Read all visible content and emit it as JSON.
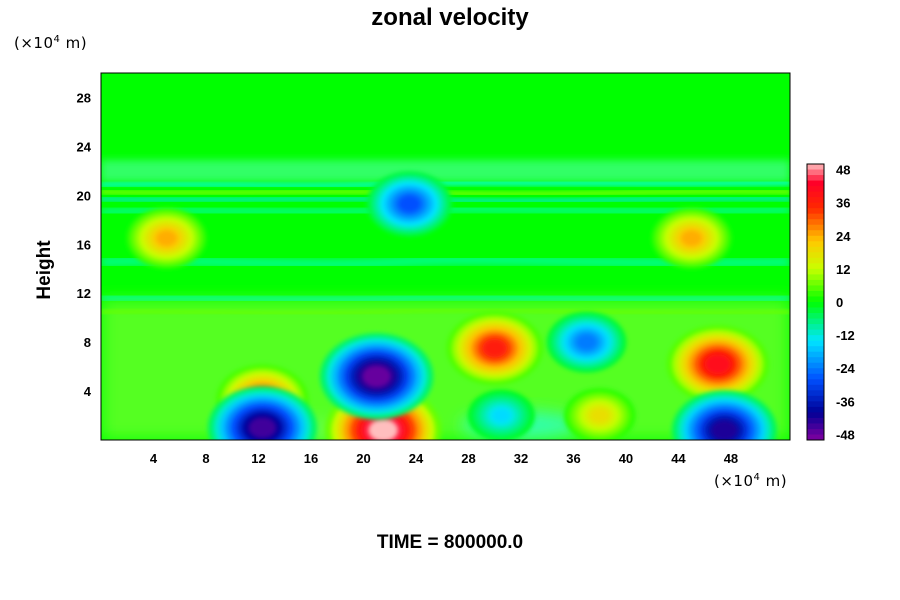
{
  "chart_data": {
    "type": "heatmap",
    "title": "zonal velocity",
    "ylabel": "Height",
    "xlabel": "",
    "x_unit_prefix": "(×10",
    "x_unit_exp": "4",
    "x_unit_suffix": " m)",
    "y_unit_prefix": "(×10",
    "y_unit_exp": "4",
    "y_unit_suffix": " m)",
    "footer": "TIME = 800000.0",
    "xlim": [
      0,
      52.5
    ],
    "ylim": [
      0,
      30
    ],
    "x_ticks": [
      "4",
      "8",
      "12",
      "16",
      "20",
      "24",
      "28",
      "32",
      "36",
      "40",
      "44",
      "48"
    ],
    "y_ticks": [
      "4",
      "8",
      "12",
      "16",
      "20",
      "24",
      "28"
    ],
    "colorbar": {
      "min": -50,
      "max": 50,
      "ticks": [
        "48",
        "36",
        "24",
        "12",
        "0",
        "-12",
        "-24",
        "-36",
        "-48"
      ]
    },
    "features": [
      {
        "x": 21.5,
        "y": 0.8,
        "value": 50
      },
      {
        "x": 21.0,
        "y": 5.2,
        "value": -48
      },
      {
        "x": 30.0,
        "y": 7.5,
        "value": 36
      },
      {
        "x": 47.0,
        "y": 6.2,
        "value": 40
      },
      {
        "x": 12.3,
        "y": 3.3,
        "value": 33
      },
      {
        "x": 12.3,
        "y": 1.0,
        "value": -45
      },
      {
        "x": 47.5,
        "y": 0.8,
        "value": -42
      },
      {
        "x": 37.0,
        "y": 8.0,
        "value": -24
      },
      {
        "x": 30.5,
        "y": 2.0,
        "value": -15
      },
      {
        "x": 23.5,
        "y": 19.3,
        "value": -28
      },
      {
        "x": 5.0,
        "y": 16.5,
        "value": 24
      },
      {
        "x": 45.0,
        "y": 16.5,
        "value": 24
      },
      {
        "x": 38.0,
        "y": 2.0,
        "value": 18
      }
    ],
    "grid": false,
    "legend": "right colorbar"
  }
}
